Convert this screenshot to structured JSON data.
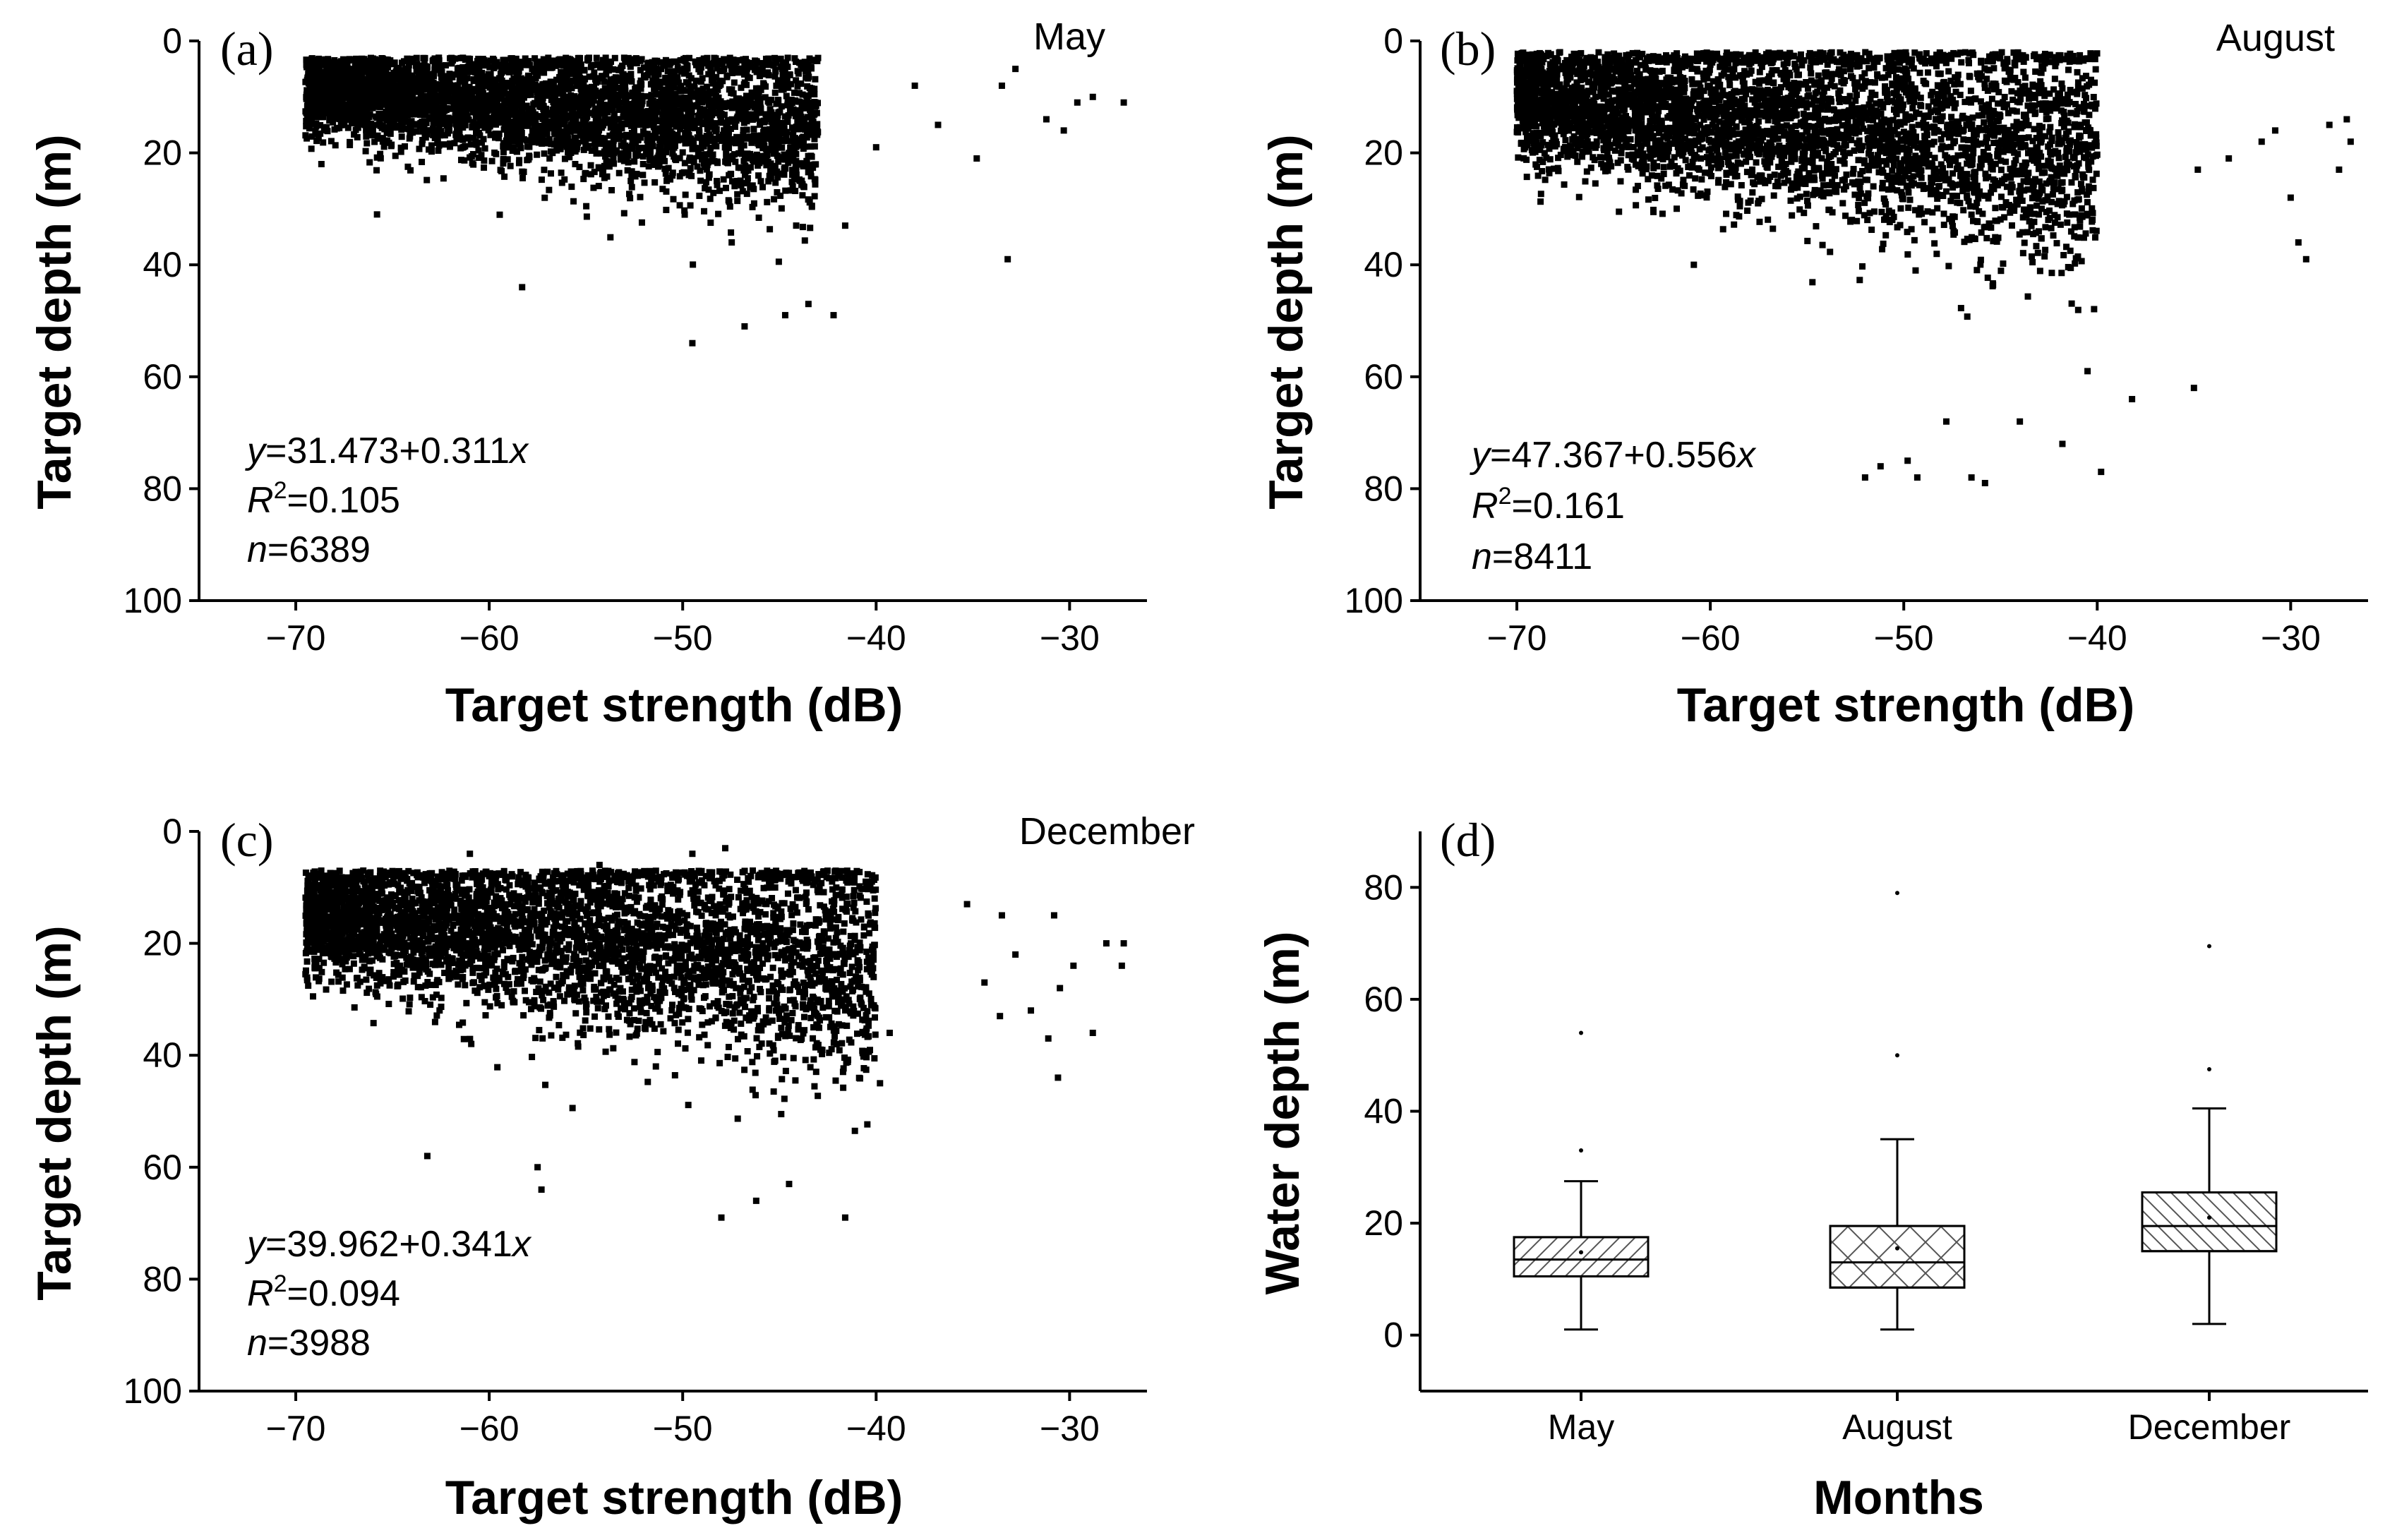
{
  "chart_data": [
    {
      "type": "scatter",
      "panel": "(a)",
      "month": "May",
      "xlabel": "Target strength (dB)",
      "ylabel": "Target depth (m)",
      "xlim": [
        -75,
        -26
      ],
      "ylim": [
        0,
        100
      ],
      "y_inverted": true,
      "xticks": [
        -70,
        -60,
        -50,
        -40,
        -30
      ],
      "yticks": [
        0,
        20,
        40,
        60,
        80,
        100
      ],
      "annotation": {
        "equation": "y=31.473+0.311x",
        "r2": "R2=0.105",
        "n": "n=6389"
      },
      "cloud": {
        "x_range": [
          -69.5,
          -43
        ],
        "depth_core": [
          4,
          24
        ],
        "count": 6389
      },
      "outliers": [
        [
          -65.8,
          31
        ],
        [
          -58.3,
          44
        ],
        [
          -49.5,
          54
        ],
        [
          -46.8,
          51
        ],
        [
          -44.7,
          49
        ],
        [
          -43.5,
          47
        ],
        [
          -42.2,
          49
        ],
        [
          -41.6,
          33
        ],
        [
          -40,
          19
        ],
        [
          -38,
          8
        ],
        [
          -36.8,
          15
        ],
        [
          -34.8,
          21
        ],
        [
          -33.5,
          8
        ],
        [
          -33.2,
          39
        ],
        [
          -32.8,
          5
        ],
        [
          -31.2,
          14
        ],
        [
          -30.3,
          16
        ],
        [
          -29.6,
          11
        ],
        [
          -28.8,
          10
        ],
        [
          -27.2,
          11
        ]
      ]
    },
    {
      "type": "scatter",
      "panel": "(b)",
      "month": "August",
      "xlabel": "Target strength (dB)",
      "ylabel": "Target depth (m)",
      "xlim": [
        -75,
        -26
      ],
      "ylim": [
        0,
        100
      ],
      "y_inverted": true,
      "xticks": [
        -70,
        -60,
        -50,
        -40,
        -30
      ],
      "yticks": [
        0,
        20,
        40,
        60,
        80,
        100
      ],
      "annotation": {
        "equation": "y=47.367+0.556x",
        "r2": "R2=0.161",
        "n": "n=8411"
      },
      "cloud": {
        "x_range": [
          -70,
          -40
        ],
        "depth_core": [
          3,
          32
        ],
        "count": 8411
      },
      "outliers": [
        [
          -52,
          78
        ],
        [
          -51.2,
          76
        ],
        [
          -49.8,
          75
        ],
        [
          -49.3,
          78
        ],
        [
          -46.5,
          78
        ],
        [
          -45.8,
          79
        ],
        [
          -39.8,
          77
        ],
        [
          -38.2,
          64
        ],
        [
          -35,
          62
        ],
        [
          -34.8,
          23
        ],
        [
          -33.2,
          21
        ],
        [
          -31.5,
          18
        ],
        [
          -30.8,
          16
        ],
        [
          -30,
          28
        ],
        [
          -29.6,
          36
        ],
        [
          -29.2,
          39
        ],
        [
          -28,
          15
        ],
        [
          -27.5,
          23
        ],
        [
          -27.1,
          14
        ],
        [
          -26.9,
          18
        ],
        [
          -41.8,
          72
        ],
        [
          -40.5,
          59
        ],
        [
          -44,
          68
        ],
        [
          -47.8,
          68
        ]
      ]
    },
    {
      "type": "scatter",
      "panel": "(c)",
      "month": "December",
      "xlabel": "Target strength (dB)",
      "ylabel": "Target depth (m)",
      "xlim": [
        -75,
        -26
      ],
      "ylim": [
        0,
        100
      ],
      "y_inverted": true,
      "xticks": [
        -70,
        -60,
        -50,
        -40,
        -30
      ],
      "yticks": [
        0,
        20,
        40,
        60,
        80,
        100
      ],
      "annotation": {
        "equation": "y=39.962+0.341x",
        "r2": "R2=0.094",
        "n": "n=3988"
      },
      "cloud": {
        "x_range": [
          -69.5,
          -40
        ],
        "depth_core": [
          8,
          36
        ],
        "count": 3988
      },
      "outliers": [
        [
          -63.2,
          58
        ],
        [
          -57.5,
          60
        ],
        [
          -57.3,
          64
        ],
        [
          -48,
          69
        ],
        [
          -46.2,
          66
        ],
        [
          -44.5,
          63
        ],
        [
          -41.6,
          69
        ],
        [
          -39.3,
          36
        ],
        [
          -39.8,
          45
        ],
        [
          -35.3,
          13
        ],
        [
          -34.4,
          27
        ],
        [
          -33.5,
          15
        ],
        [
          -33.6,
          33
        ],
        [
          -32.8,
          22
        ],
        [
          -32,
          32
        ],
        [
          -31.1,
          37
        ],
        [
          -30.8,
          15
        ],
        [
          -30.6,
          44
        ],
        [
          -30.5,
          28
        ],
        [
          -29.8,
          24
        ],
        [
          -28.8,
          36
        ],
        [
          -28.1,
          20
        ],
        [
          -27.3,
          24
        ],
        [
          -27.2,
          20
        ],
        [
          -47.8,
          3
        ],
        [
          -49.5,
          4
        ],
        [
          -54.3,
          6
        ],
        [
          -61,
          4
        ],
        [
          -60,
          8
        ]
      ]
    },
    {
      "type": "box",
      "panel": "(d)",
      "xlabel": "Months",
      "ylabel": "Water depth (m)",
      "ylim": [
        -10,
        90
      ],
      "yticks": [
        0,
        20,
        40,
        60,
        80
      ],
      "categories": [
        "May",
        "August",
        "December"
      ],
      "boxes": [
        {
          "whisker_low": 1,
          "q1": 10.5,
          "median": 13.5,
          "mean": 14.8,
          "q3": 17.5,
          "whisker_high": 27.5,
          "outliers": [
            33,
            54
          ],
          "pattern": "diag"
        },
        {
          "whisker_low": 1,
          "q1": 8.5,
          "median": 13,
          "mean": 15.5,
          "q3": 19.5,
          "whisker_high": 35,
          "outliers": [
            50,
            79
          ],
          "pattern": "cross"
        },
        {
          "whisker_low": 2,
          "q1": 15,
          "median": 19.5,
          "mean": 21,
          "q3": 25.5,
          "whisker_high": 40.5,
          "outliers": [
            47.5,
            69.5
          ],
          "pattern": "back"
        }
      ]
    }
  ],
  "labels": {
    "panel_a": "(a)",
    "panel_b": "(b)",
    "panel_c": "(c)",
    "panel_d": "(d)",
    "month_a": "May",
    "month_b": "August",
    "month_c": "December",
    "eq_a_y": "y",
    "eq_a_rest": "=31.473+0.311",
    "eq_a_x": "x",
    "r2_a_r": "R",
    "r2_a_sup": "2",
    "r2_a_val": "=0.105",
    "n_a_n": "n",
    "n_a_val": "=6389",
    "eq_b_y": "y",
    "eq_b_rest": "=47.367+0.556",
    "eq_b_x": "x",
    "r2_b_r": "R",
    "r2_b_sup": "2",
    "r2_b_val": "=0.161",
    "n_b_n": "n",
    "n_b_val": "=8411",
    "eq_c_y": "y",
    "eq_c_rest": "=39.962+0.341",
    "eq_c_x": "x",
    "r2_c_r": "R",
    "r2_c_sup": "2",
    "r2_c_val": "=0.094",
    "n_c_n": "n",
    "n_c_val": "=3988",
    "xlabel_ts": "Target strength (dB)",
    "ylabel_td": "Target depth (m)",
    "xlabel_months": "Months",
    "ylabel_wd": "Water depth (m)"
  }
}
